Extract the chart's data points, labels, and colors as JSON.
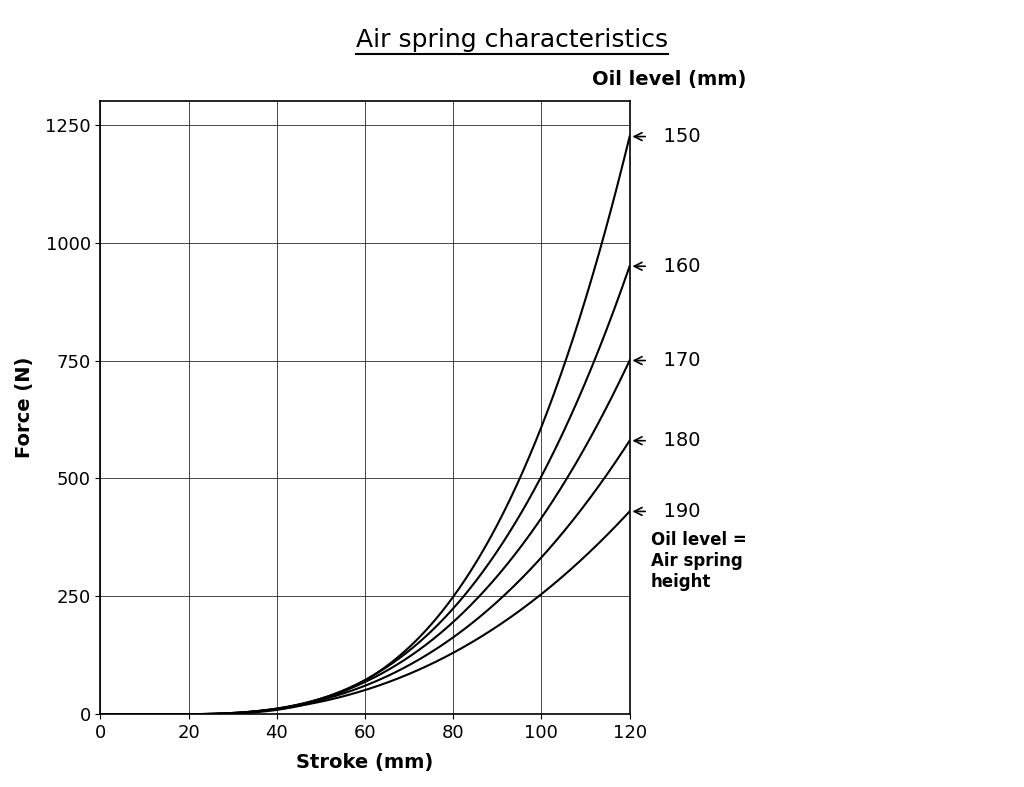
{
  "title": "Air spring characteristics",
  "xlabel": "Stroke (mm)",
  "ylabel": "Force (N)",
  "right_label": "Oil level (mm)",
  "annotation_label": "Oil level =\nAir spring\nheight",
  "xlim": [
    0,
    120
  ],
  "ylim": [
    0,
    1300
  ],
  "xticks": [
    0,
    20,
    40,
    60,
    80,
    100,
    120
  ],
  "yticks": [
    0,
    250,
    500,
    750,
    1000,
    1250
  ],
  "curve_labels": [
    "150",
    "160",
    "170",
    "180",
    "190"
  ],
  "curve_end_values": [
    1225,
    950,
    750,
    580,
    430
  ],
  "curve_offsets": [
    18,
    18,
    18,
    18,
    18
  ],
  "curve_exponents": [
    3.2,
    2.9,
    2.7,
    2.55,
    2.4
  ],
  "curve_color": "#000000",
  "background_color": "#ffffff",
  "title_fontsize": 18,
  "axis_label_fontsize": 14,
  "tick_fontsize": 13,
  "annotation_fontsize": 12
}
